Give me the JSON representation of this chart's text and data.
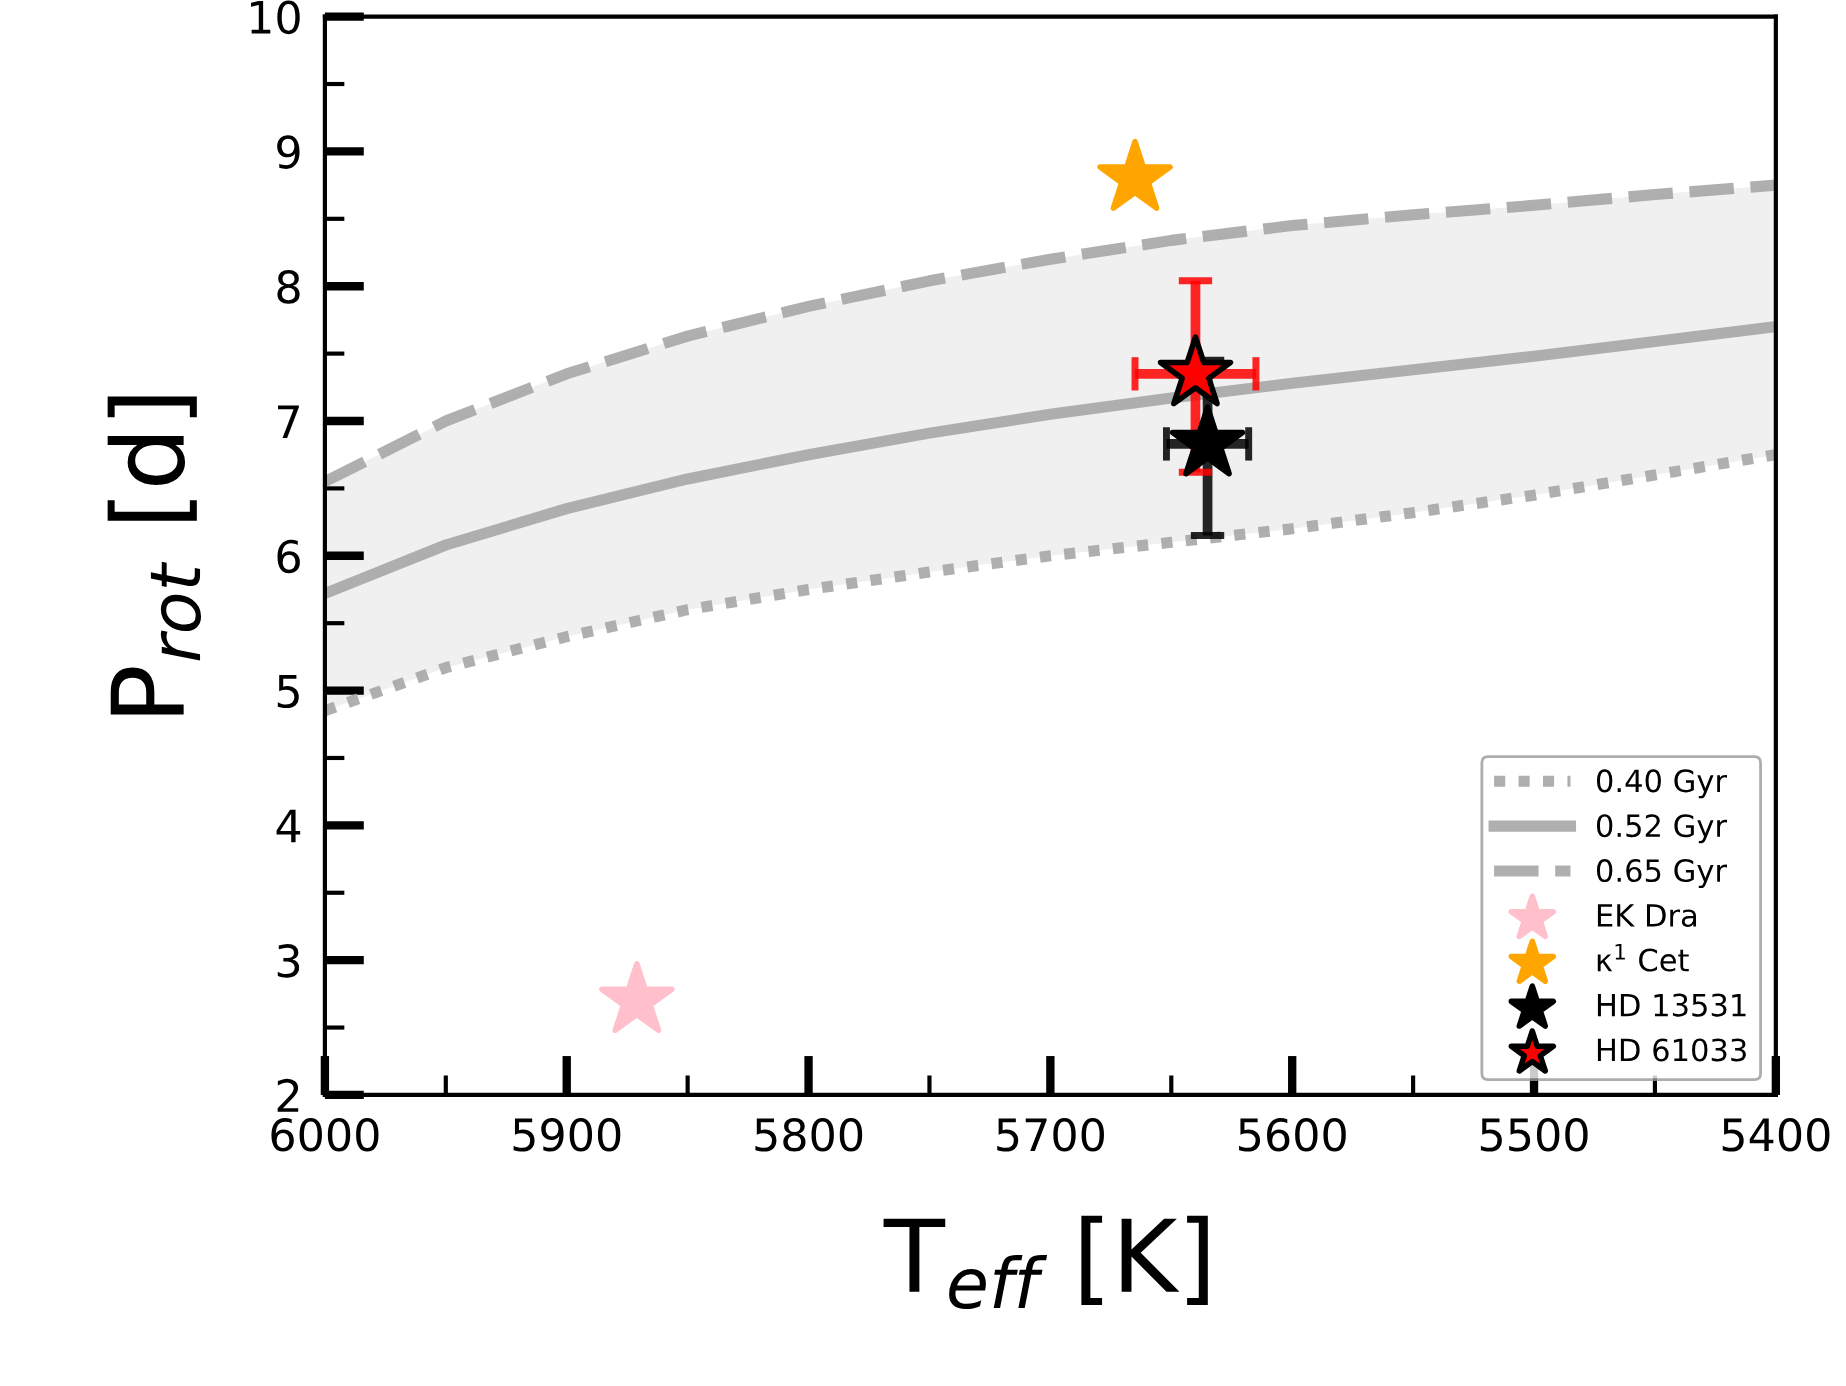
{
  "chart_data": {
    "type": "line",
    "xlabel": "T$_{eff}$ [K]",
    "ylabel": "P$_{rot}$ [d]",
    "xlim": [
      6000,
      5400
    ],
    "xticks": [
      6000,
      5900,
      5800,
      5700,
      5600,
      5500,
      5400
    ],
    "ylim": [
      2,
      10
    ],
    "yticks": [
      2,
      3,
      4,
      5,
      6,
      7,
      8,
      9,
      10
    ],
    "grid": false,
    "legend": "bottom right",
    "series": [
      {
        "name": "0.40 Gyr",
        "type": "line",
        "line_style": "dotted",
        "color": "#a6a6a6",
        "x": [
          6000,
          5950,
          5900,
          5850,
          5800,
          5750,
          5700,
          5650,
          5600,
          5550,
          5500,
          5450,
          5400
        ],
        "values": [
          4.85,
          5.17,
          5.4,
          5.6,
          5.75,
          5.88,
          6.0,
          6.1,
          6.2,
          6.32,
          6.45,
          6.6,
          6.75
        ]
      },
      {
        "name": "0.52 Gyr",
        "type": "line",
        "line_style": "solid",
        "color": "#a6a6a6",
        "x": [
          6000,
          5950,
          5900,
          5850,
          5800,
          5750,
          5700,
          5650,
          5600,
          5550,
          5500,
          5450,
          5400
        ],
        "values": [
          5.72,
          6.08,
          6.35,
          6.57,
          6.75,
          6.91,
          7.05,
          7.17,
          7.28,
          7.38,
          7.48,
          7.59,
          7.7
        ],
        "lower": [
          4.85,
          5.17,
          5.4,
          5.6,
          5.75,
          5.88,
          6.0,
          6.1,
          6.2,
          6.32,
          6.45,
          6.6,
          6.75
        ],
        "upper": [
          6.55,
          7.0,
          7.35,
          7.63,
          7.85,
          8.04,
          8.2,
          8.34,
          8.45,
          8.53,
          8.6,
          8.68,
          8.75
        ]
      },
      {
        "name": "0.65 Gyr",
        "type": "line",
        "line_style": "dashed",
        "color": "#a6a6a6",
        "x": [
          6000,
          5950,
          5900,
          5850,
          5800,
          5750,
          5700,
          5650,
          5600,
          5550,
          5500,
          5450,
          5400
        ],
        "values": [
          6.55,
          7.0,
          7.35,
          7.63,
          7.85,
          8.04,
          8.2,
          8.34,
          8.45,
          8.53,
          8.6,
          8.68,
          8.75
        ]
      },
      {
        "name": "EK Dra",
        "type": "scatter",
        "marker": "star",
        "color": "#ffc0cb",
        "x": [
          5871
        ],
        "values": [
          2.7
        ]
      },
      {
        "name": "κ$^{1}$ Cet",
        "type": "scatter",
        "marker": "star",
        "color": "#ffa500",
        "x": [
          5665
        ],
        "values": [
          8.8
        ]
      },
      {
        "name": "HD 13531",
        "type": "scatter",
        "marker": "star",
        "color": "#000000",
        "x": [
          5635
        ],
        "values": [
          6.83
        ],
        "errors": [
          [
            6.15,
            7.45
          ]
        ],
        "xerrors": [
          [
            5618,
            5652
          ]
        ]
      },
      {
        "name": "HD 61033",
        "type": "scatter",
        "marker": "star",
        "color": "#ff0000",
        "x": [
          5640
        ],
        "values": [
          7.35
        ],
        "errors": [
          [
            6.62,
            8.04
          ]
        ],
        "xerrors": [
          [
            5615,
            5665
          ]
        ]
      }
    ]
  }
}
